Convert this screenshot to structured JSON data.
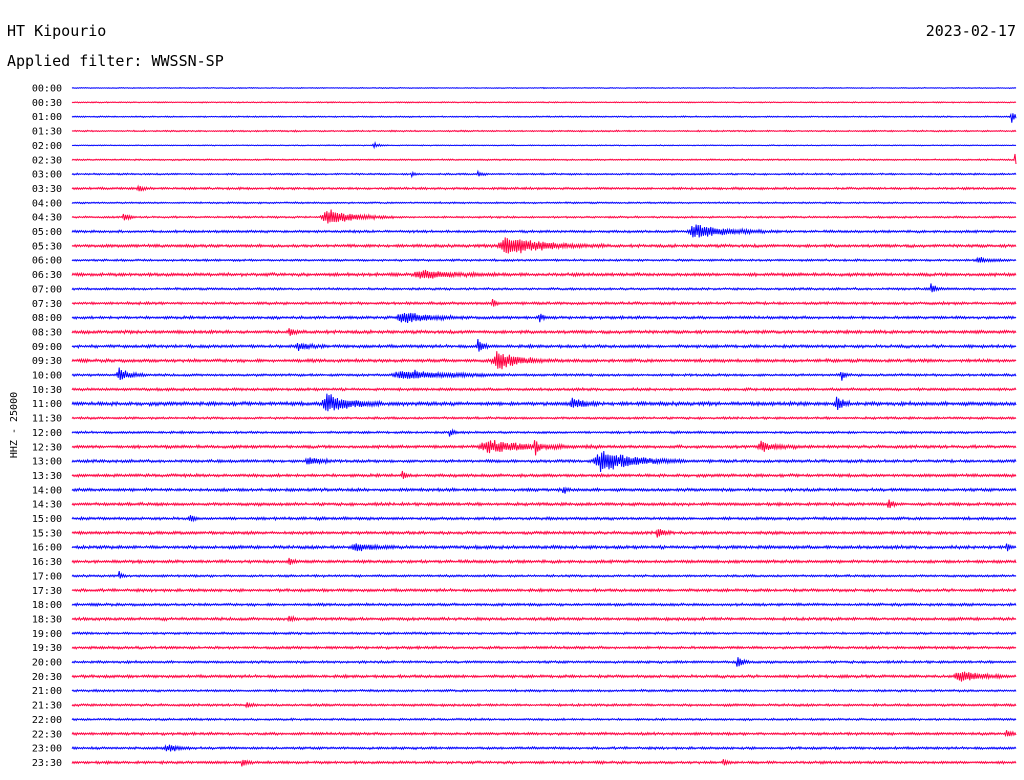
{
  "header": {
    "station": "HT Kipourio",
    "date": "2023-02-17",
    "filter": "Applied filter: WWSSN-SP"
  },
  "chart_data": {
    "type": "line",
    "title": "HT Kipourio",
    "ylabel": "HHZ - 25000",
    "row_labels": [
      "00:00",
      "00:30",
      "01:00",
      "01:30",
      "02:00",
      "02:30",
      "03:00",
      "03:30",
      "04:00",
      "04:30",
      "05:00",
      "05:30",
      "06:00",
      "06:30",
      "07:00",
      "07:30",
      "08:00",
      "08:30",
      "09:00",
      "09:30",
      "10:00",
      "10:30",
      "11:00",
      "11:30",
      "12:00",
      "12:30",
      "13:00",
      "13:30",
      "14:00",
      "14:30",
      "15:00",
      "15:30",
      "16:00",
      "16:30",
      "17:00",
      "17:30",
      "18:00",
      "18:30",
      "19:00",
      "19:30",
      "20:00",
      "20:30",
      "21:00",
      "21:30",
      "22:00",
      "22:30",
      "23:00",
      "23:30"
    ],
    "series_colors": [
      "#0000ff",
      "#ff0040"
    ],
    "noise_level": [
      0.5,
      0.6,
      0.7,
      0.8,
      0.5,
      0.8,
      0.9,
      1.2,
      0.9,
      1.0,
      1.3,
      1.6,
      1.1,
      1.7,
      1.2,
      1.4,
      1.5,
      1.7,
      1.6,
      1.7,
      1.3,
      1.4,
      2.0,
      1.2,
      1.2,
      1.6,
      1.5,
      1.6,
      1.6,
      1.6,
      1.5,
      1.6,
      1.7,
      1.6,
      1.2,
      1.5,
      1.4,
      1.6,
      1.2,
      1.4,
      1.3,
      1.5,
      1.2,
      1.3,
      1.1,
      1.4,
      1.3,
      1.4
    ],
    "events": [
      {
        "row": 2,
        "t": 0.995,
        "amp": 8,
        "dur": 0.004
      },
      {
        "row": 4,
        "t": 0.32,
        "amp": 3,
        "dur": 0.005
      },
      {
        "row": 5,
        "t": 0.999,
        "amp": 8,
        "dur": 0.003
      },
      {
        "row": 6,
        "t": 0.36,
        "amp": 3,
        "dur": 0.003
      },
      {
        "row": 6,
        "t": 0.43,
        "amp": 3,
        "dur": 0.004
      },
      {
        "row": 7,
        "t": 0.07,
        "amp": 4,
        "dur": 0.005
      },
      {
        "row": 9,
        "t": 0.055,
        "amp": 7,
        "dur": 0.004
      },
      {
        "row": 9,
        "t": 0.27,
        "amp": 9,
        "dur": 0.025
      },
      {
        "row": 10,
        "t": 0.66,
        "amp": 8,
        "dur": 0.03
      },
      {
        "row": 11,
        "t": 0.46,
        "amp": 11,
        "dur": 0.035
      },
      {
        "row": 12,
        "t": 0.96,
        "amp": 4,
        "dur": 0.01
      },
      {
        "row": 13,
        "t": 0.37,
        "amp": 5,
        "dur": 0.03
      },
      {
        "row": 14,
        "t": 0.91,
        "amp": 7,
        "dur": 0.004
      },
      {
        "row": 15,
        "t": 0.445,
        "amp": 6,
        "dur": 0.003
      },
      {
        "row": 16,
        "t": 0.35,
        "amp": 7,
        "dur": 0.025
      },
      {
        "row": 16,
        "t": 0.495,
        "amp": 5,
        "dur": 0.004
      },
      {
        "row": 17,
        "t": 0.23,
        "amp": 8,
        "dur": 0.003
      },
      {
        "row": 18,
        "t": 0.43,
        "amp": 10,
        "dur": 0.004
      },
      {
        "row": 18,
        "t": 0.24,
        "amp": 4,
        "dur": 0.01
      },
      {
        "row": 19,
        "t": 0.45,
        "amp": 11,
        "dur": 0.02
      },
      {
        "row": 20,
        "t": 0.05,
        "amp": 8,
        "dur": 0.01
      },
      {
        "row": 20,
        "t": 0.35,
        "amp": 6,
        "dur": 0.04
      },
      {
        "row": 20,
        "t": 0.815,
        "amp": 7,
        "dur": 0.003
      },
      {
        "row": 22,
        "t": 0.27,
        "amp": 13,
        "dur": 0.02
      },
      {
        "row": 22,
        "t": 0.53,
        "amp": 7,
        "dur": 0.01
      },
      {
        "row": 22,
        "t": 0.81,
        "amp": 12,
        "dur": 0.005
      },
      {
        "row": 24,
        "t": 0.4,
        "amp": 6,
        "dur": 0.003
      },
      {
        "row": 25,
        "t": 0.44,
        "amp": 7,
        "dur": 0.04
      },
      {
        "row": 25,
        "t": 0.49,
        "amp": 10,
        "dur": 0.003
      },
      {
        "row": 25,
        "t": 0.73,
        "amp": 6,
        "dur": 0.015
      },
      {
        "row": 26,
        "t": 0.25,
        "amp": 7,
        "dur": 0.01
      },
      {
        "row": 26,
        "t": 0.56,
        "amp": 14,
        "dur": 0.03
      },
      {
        "row": 27,
        "t": 0.35,
        "amp": 5,
        "dur": 0.003
      },
      {
        "row": 28,
        "t": 0.52,
        "amp": 5,
        "dur": 0.003
      },
      {
        "row": 29,
        "t": 0.865,
        "amp": 6,
        "dur": 0.004
      },
      {
        "row": 30,
        "t": 0.125,
        "amp": 6,
        "dur": 0.003
      },
      {
        "row": 31,
        "t": 0.62,
        "amp": 7,
        "dur": 0.005
      },
      {
        "row": 32,
        "t": 0.3,
        "amp": 5,
        "dur": 0.015
      },
      {
        "row": 32,
        "t": 0.99,
        "amp": 5,
        "dur": 0.003
      },
      {
        "row": 33,
        "t": 0.23,
        "amp": 5,
        "dur": 0.003
      },
      {
        "row": 34,
        "t": 0.05,
        "amp": 4,
        "dur": 0.003
      },
      {
        "row": 37,
        "t": 0.23,
        "amp": 4,
        "dur": 0.004
      },
      {
        "row": 40,
        "t": 0.705,
        "amp": 8,
        "dur": 0.005
      },
      {
        "row": 41,
        "t": 0.94,
        "amp": 7,
        "dur": 0.02
      },
      {
        "row": 43,
        "t": 0.185,
        "amp": 5,
        "dur": 0.003
      },
      {
        "row": 45,
        "t": 0.99,
        "amp": 4,
        "dur": 0.006
      },
      {
        "row": 46,
        "t": 0.1,
        "amp": 5,
        "dur": 0.01
      },
      {
        "row": 47,
        "t": 0.18,
        "amp": 7,
        "dur": 0.004
      },
      {
        "row": 47,
        "t": 0.69,
        "amp": 5,
        "dur": 0.003
      }
    ]
  }
}
